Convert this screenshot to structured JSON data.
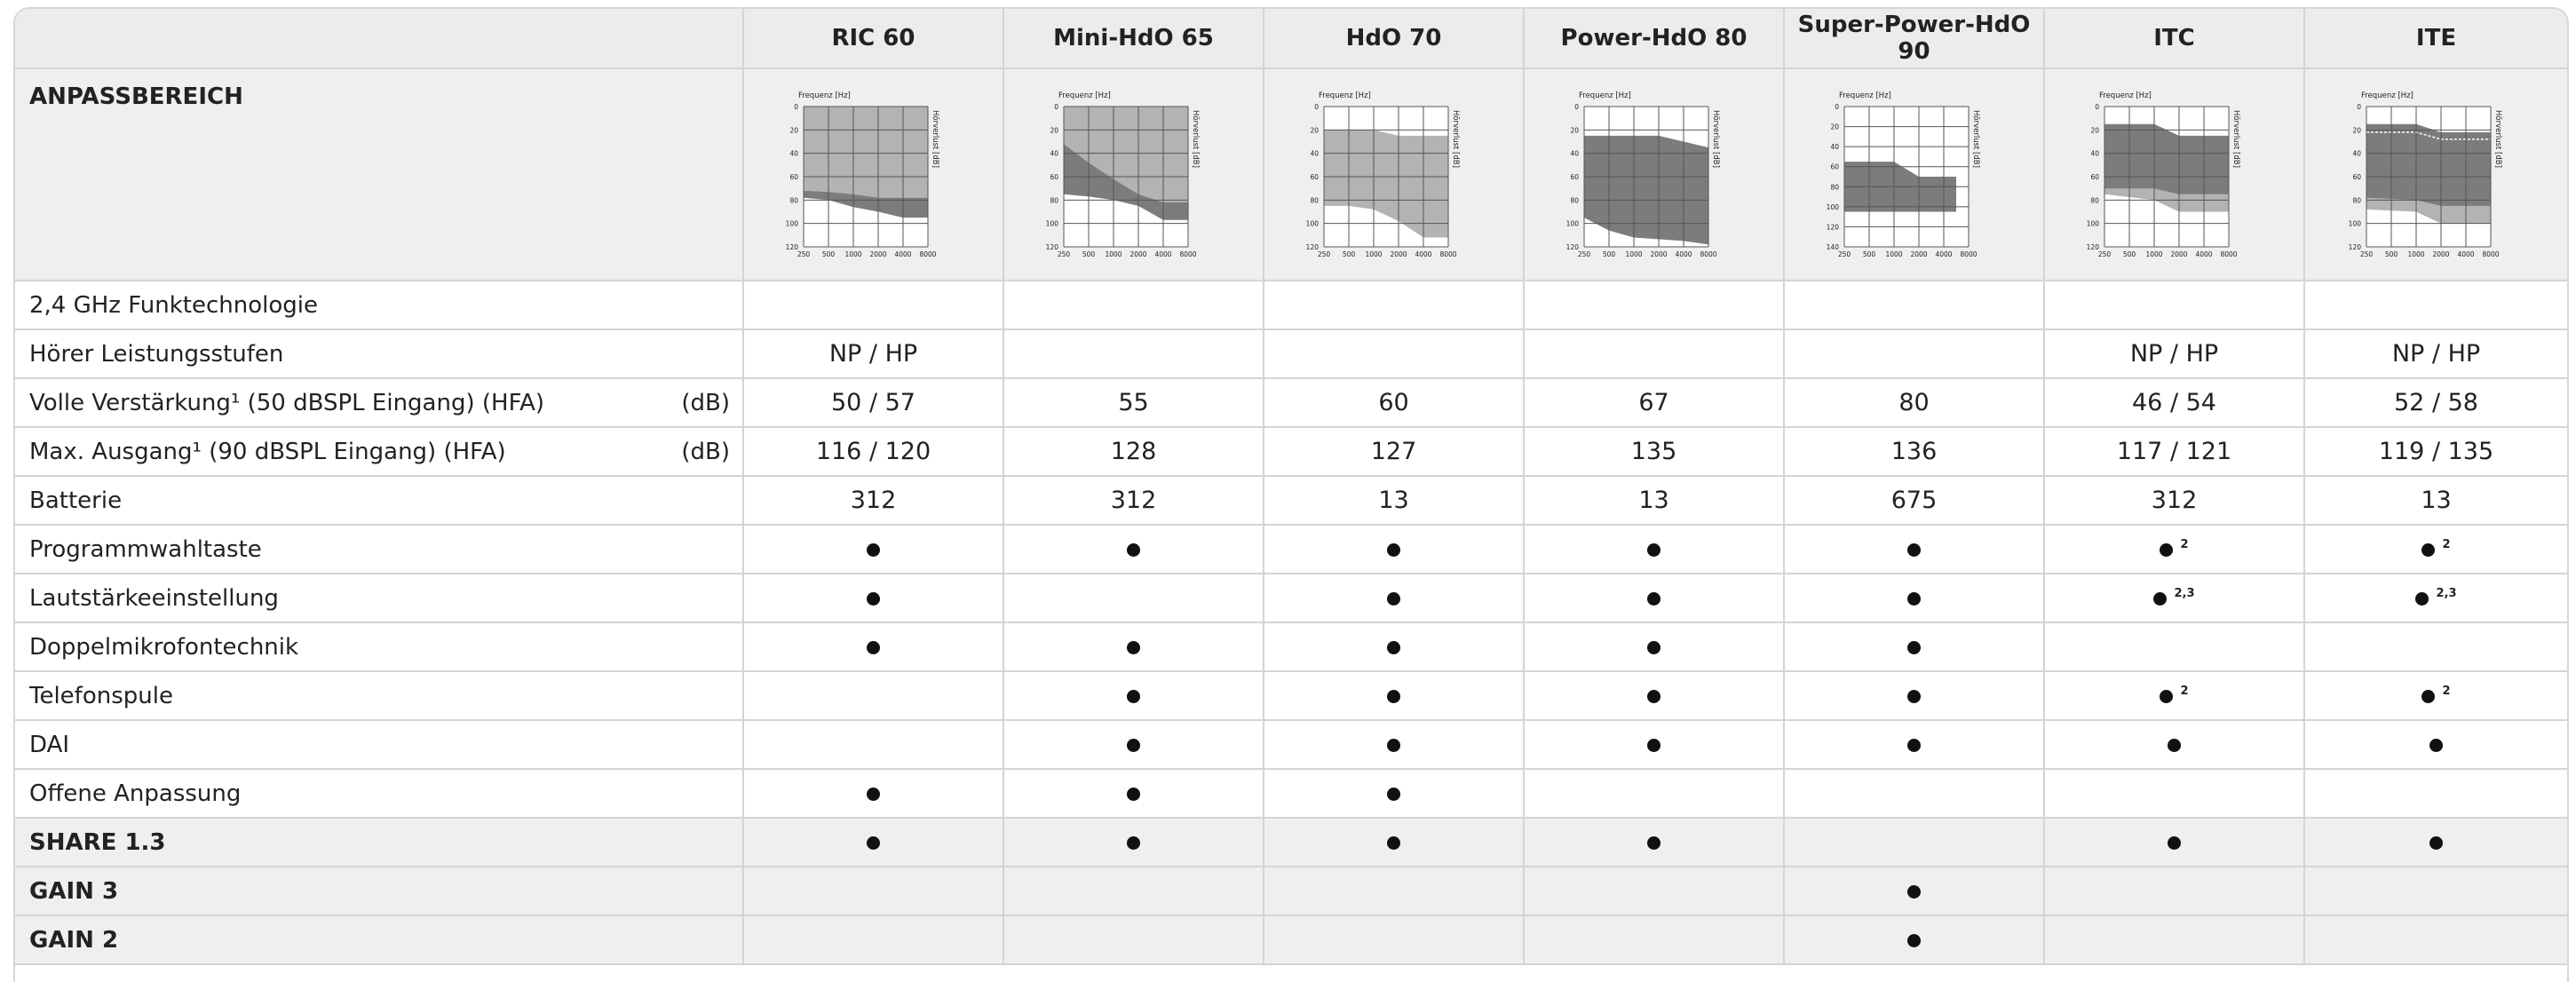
{
  "columns": [
    "RIC 60",
    "Mini-HdO 65",
    "HdO 70",
    "Power-HdO 80",
    "Super-Power-HdO 90",
    "ITC",
    "ITE"
  ],
  "fitting_range": {
    "label": "ANPASSBEREICH",
    "freq_label": "Frequenz [Hz]",
    "loss_label": "Hörverlust [dB]",
    "x_ticks": [
      "250",
      "500",
      "1000",
      "2000",
      "4000",
      "8000"
    ],
    "y_ticks": [
      "0",
      "20",
      "40",
      "60",
      "80",
      "100",
      "120"
    ],
    "y_ticks_alt": [
      "0",
      "20",
      "40",
      "60",
      "80",
      "100",
      "120",
      "140"
    ],
    "colors": {
      "light": "#b3b3b3",
      "dark": "#7c7c7c",
      "grid": "#555555"
    },
    "charts": [
      {
        "ymax": 120,
        "light": [
          [
            0,
            0
          ],
          [
            5,
            0
          ],
          [
            5,
            78
          ],
          [
            3,
            78
          ],
          [
            2,
            75
          ],
          [
            1,
            73
          ],
          [
            0,
            72
          ]
        ],
        "dark": [
          [
            0,
            72
          ],
          [
            1,
            73
          ],
          [
            2,
            75
          ],
          [
            3,
            78
          ],
          [
            5,
            78
          ],
          [
            5,
            95
          ],
          [
            4,
            95
          ],
          [
            3,
            90
          ],
          [
            2,
            86
          ],
          [
            1,
            80
          ],
          [
            0,
            78
          ]
        ]
      },
      {
        "ymax": 120,
        "light": [
          [
            0,
            0
          ],
          [
            5,
            0
          ],
          [
            5,
            82
          ],
          [
            4,
            82
          ],
          [
            3,
            75
          ],
          [
            2,
            62
          ],
          [
            1,
            48
          ],
          [
            0,
            32
          ]
        ],
        "dark": [
          [
            0,
            32
          ],
          [
            1,
            48
          ],
          [
            2,
            62
          ],
          [
            3,
            75
          ],
          [
            4,
            82
          ],
          [
            5,
            82
          ],
          [
            5,
            97
          ],
          [
            4,
            97
          ],
          [
            3,
            85
          ],
          [
            2,
            80
          ],
          [
            1,
            77
          ],
          [
            0,
            75
          ]
        ]
      },
      {
        "ymax": 120,
        "light": [
          [
            0,
            20
          ],
          [
            2,
            20
          ],
          [
            3,
            25
          ],
          [
            5,
            25
          ],
          [
            5,
            112
          ],
          [
            4,
            112
          ],
          [
            3,
            98
          ],
          [
            2,
            88
          ],
          [
            1,
            85
          ],
          [
            0,
            85
          ]
        ]
      },
      {
        "ymax": 120,
        "dark": [
          [
            0,
            25
          ],
          [
            3,
            25
          ],
          [
            5,
            35
          ],
          [
            5,
            118
          ],
          [
            4,
            115
          ],
          [
            2,
            112
          ],
          [
            1,
            106
          ],
          [
            0,
            95
          ]
        ]
      },
      {
        "ymax": 140,
        "dark": [
          [
            0,
            55
          ],
          [
            2,
            55
          ],
          [
            3,
            70
          ],
          [
            4.5,
            70
          ],
          [
            4.5,
            105
          ],
          [
            0,
            105
          ]
        ]
      },
      {
        "ymax": 120,
        "light": [
          [
            0,
            60
          ],
          [
            2,
            60
          ],
          [
            3,
            62
          ],
          [
            5,
            62
          ],
          [
            5,
            90
          ],
          [
            3,
            90
          ],
          [
            2,
            80
          ],
          [
            0,
            75
          ]
        ],
        "dark": [
          [
            0,
            15
          ],
          [
            2,
            15
          ],
          [
            3,
            25
          ],
          [
            5,
            25
          ],
          [
            5,
            75
          ],
          [
            3,
            75
          ],
          [
            2,
            70
          ],
          [
            0,
            70
          ]
        ]
      },
      {
        "ymax": 120,
        "light": [
          [
            0,
            65
          ],
          [
            2,
            65
          ],
          [
            3,
            70
          ],
          [
            5,
            70
          ],
          [
            5,
            100
          ],
          [
            3,
            100
          ],
          [
            2,
            90
          ],
          [
            0,
            88
          ]
        ],
        "dark": [
          [
            0,
            15
          ],
          [
            2,
            15
          ],
          [
            3,
            22
          ],
          [
            5,
            22
          ],
          [
            5,
            85
          ],
          [
            3,
            85
          ],
          [
            2,
            80
          ],
          [
            0,
            78
          ]
        ],
        "dashed": [
          [
            0,
            22
          ],
          [
            2,
            22
          ],
          [
            3,
            28
          ],
          [
            5,
            28
          ]
        ]
      }
    ]
  },
  "rows": [
    {
      "label": "2,4 GHz Funktechnologie",
      "unit": "",
      "style": "",
      "cells": [
        "",
        "",
        "",
        "",
        "",
        "",
        ""
      ]
    },
    {
      "label": "Hörer Leistungsstufen",
      "unit": "",
      "style": "",
      "cells": [
        "NP / HP",
        "",
        "",
        "",
        "",
        "NP / HP",
        "NP / HP"
      ]
    },
    {
      "label": "Volle Verstärkung¹ (50 dBSPL Eingang) (HFA)",
      "unit": "(dB)",
      "style": "",
      "cells": [
        "50 / 57",
        "55",
        "60",
        "67",
        "80",
        "46 / 54",
        "52 / 58"
      ]
    },
    {
      "label": "Max. Ausgang¹ (90 dBSPL Eingang) (HFA)",
      "unit": "(dB)",
      "style": "",
      "cells": [
        "116 / 120",
        "128",
        "127",
        "135",
        "136",
        "117 / 121",
        "119 / 135"
      ]
    },
    {
      "label": "Batterie",
      "unit": "",
      "style": "",
      "cells": [
        "312",
        "312",
        "13",
        "13",
        "675",
        "312",
        "13"
      ]
    },
    {
      "label": "Programmwahltaste",
      "unit": "",
      "style": "",
      "cells": [
        "●",
        "●",
        "●",
        "●",
        "●",
        "●|2",
        "●|2"
      ]
    },
    {
      "label": "Lautstärkeeinstellung",
      "unit": "",
      "style": "",
      "cells": [
        "●",
        "",
        "●",
        "●",
        "●",
        "●|2,3",
        "●|2,3"
      ]
    },
    {
      "label": "Doppelmikrofontechnik",
      "unit": "",
      "style": "",
      "cells": [
        "●",
        "●",
        "●",
        "●",
        "●",
        "",
        ""
      ]
    },
    {
      "label": "Telefonspule",
      "unit": "",
      "style": "",
      "cells": [
        "",
        "●",
        "●",
        "●",
        "●",
        "●|2",
        "●|2"
      ]
    },
    {
      "label": "DAI",
      "unit": "",
      "style": "",
      "cells": [
        "",
        "●",
        "●",
        "●",
        "●",
        "●",
        "●"
      ]
    },
    {
      "label": "Offene Anpassung",
      "unit": "",
      "style": "",
      "cells": [
        "●",
        "●",
        "●",
        "",
        "",
        "",
        ""
      ]
    },
    {
      "label": "SHARE 1.3",
      "unit": "",
      "style": "shaded",
      "cells": [
        "●",
        "●",
        "●",
        "●",
        "",
        "●",
        "●"
      ]
    },
    {
      "label": "GAIN 3",
      "unit": "",
      "style": "shaded",
      "cells": [
        "",
        "",
        "",
        "",
        "●",
        "",
        ""
      ]
    },
    {
      "label": "GAIN 2",
      "unit": "",
      "style": "shaded",
      "cells": [
        "",
        "",
        "",
        "",
        "●",
        "",
        ""
      ]
    }
  ]
}
